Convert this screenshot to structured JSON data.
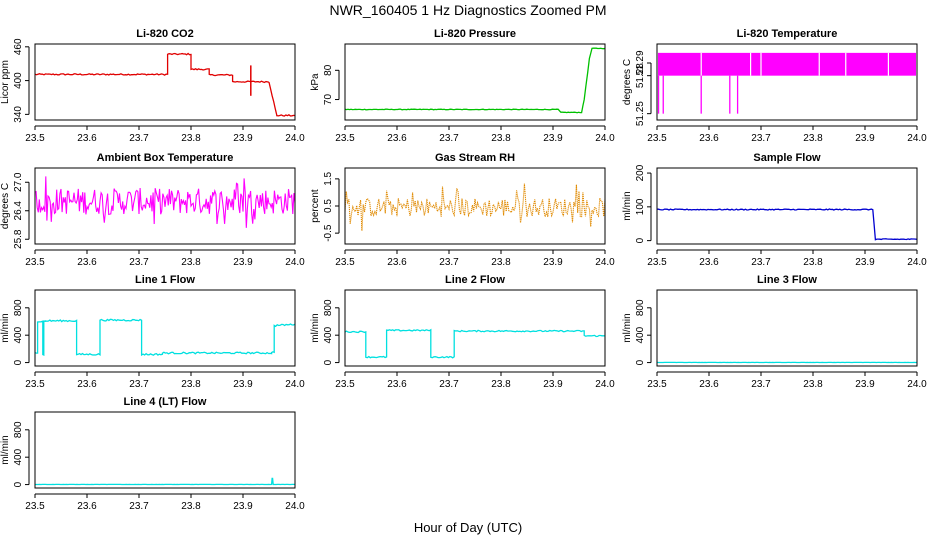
{
  "figure": {
    "title": "NWR_160405  1 Hz Diagnostics Zoomed PM",
    "xlabel": "Hour of Day (UTC)"
  },
  "chart_data": [
    {
      "type": "line",
      "title": "Li-820 CO2",
      "ylabel": "Licor ppm",
      "xlim": [
        23.5,
        24.0
      ],
      "ylim": [
        330,
        465
      ],
      "xticks": [
        "23.5",
        "23.6",
        "23.7",
        "23.8",
        "23.9",
        "24.0"
      ],
      "yticks": [
        {
          "v": 340,
          "label": "340"
        },
        {
          "v": 400,
          "label": "400"
        },
        {
          "v": 460,
          "label": "460"
        }
      ],
      "noise": 1.2,
      "series": [
        {
          "color": "#e00000",
          "x": [
            23.5,
            23.755,
            23.755,
            23.8,
            23.8,
            23.835,
            23.835,
            23.88,
            23.88,
            23.95,
            23.95,
            23.965,
            23.965,
            24.0
          ],
          "y": [
            411,
            411,
            447,
            447,
            420,
            420,
            410,
            410,
            398,
            398,
            398,
            338,
            338,
            338
          ]
        }
      ],
      "cross": {
        "x": 23.915,
        "y": 400,
        "dy": 27
      }
    },
    {
      "type": "line",
      "title": "Li-820 Pressure",
      "ylabel": "kPa",
      "xlim": [
        23.5,
        24.0
      ],
      "ylim": [
        63,
        89
      ],
      "xticks": [
        "23.5",
        "23.6",
        "23.7",
        "23.8",
        "23.9",
        "24.0"
      ],
      "yticks": [
        {
          "v": 70,
          "label": "70"
        },
        {
          "v": 80,
          "label": "80"
        }
      ],
      "noise": 0.1,
      "series": [
        {
          "color": "#00c000",
          "x": [
            23.5,
            23.91,
            23.915,
            23.955,
            23.96,
            23.97,
            23.975,
            24.0
          ],
          "y": [
            66.6,
            66.6,
            65.6,
            65.6,
            70,
            84,
            87.5,
            87.5
          ]
        }
      ]
    },
    {
      "type": "band",
      "title": "Li-820 Temperature",
      "ylabel": "degrees C",
      "xlim": [
        23.5,
        24.0
      ],
      "ylim": [
        51.245,
        51.305
      ],
      "xticks": [
        "23.5",
        "23.6",
        "23.7",
        "23.8",
        "23.9",
        "24.0"
      ],
      "yticks": [
        {
          "v": 51.25,
          "label": "51.25"
        },
        {
          "v": 51.28,
          "label": "51.28"
        },
        {
          "v": 51.29,
          "label": "51.29"
        }
      ],
      "color": "#ff00ff",
      "low": 51.28,
      "high": 51.298,
      "gaps": [
        23.585,
        23.68,
        23.7,
        23.812,
        23.863,
        23.945
      ],
      "spikes": [
        {
          "x": 23.503,
          "y": 51.25
        },
        {
          "x": 23.512,
          "y": 51.25
        },
        {
          "x": 23.585,
          "y": 51.25
        },
        {
          "x": 23.64,
          "y": 51.25
        },
        {
          "x": 23.655,
          "y": 51.25
        }
      ]
    },
    {
      "type": "noise",
      "title": "Ambient Box Temperature",
      "ylabel": "degrees C",
      "xlim": [
        23.5,
        24.0
      ],
      "ylim": [
        25.7,
        27.3
      ],
      "xticks": [
        "23.5",
        "23.6",
        "23.7",
        "23.8",
        "23.9",
        "24.0"
      ],
      "yticks": [
        {
          "v": 25.8,
          "label": "25.8"
        },
        {
          "v": 26.4,
          "label": "26.4"
        },
        {
          "v": 27.0,
          "label": "27.0"
        }
      ],
      "color": "#ff00ff",
      "mean": 26.6,
      "amp": 0.28,
      "spike": 0.6,
      "points": 240,
      "dotted": false
    },
    {
      "type": "noise",
      "title": "Gas Stream RH",
      "ylabel": "percent",
      "xlim": [
        23.5,
        24.0
      ],
      "ylim": [
        -0.9,
        1.9
      ],
      "xticks": [
        "23.5",
        "23.6",
        "23.7",
        "23.8",
        "23.9",
        "24.0"
      ],
      "yticks": [
        {
          "v": -0.5,
          "label": "-0.5"
        },
        {
          "v": 0.5,
          "label": "0.5"
        },
        {
          "v": 1.5,
          "label": "1.5"
        }
      ],
      "color": "#e08a00",
      "mean": 0.45,
      "amp": 0.35,
      "spike": 0.9,
      "points": 200,
      "dotted": true
    },
    {
      "type": "line",
      "title": "Sample Flow",
      "ylabel": "ml/min",
      "xlim": [
        23.5,
        24.0
      ],
      "ylim": [
        -10,
        215
      ],
      "xticks": [
        "23.5",
        "23.6",
        "23.7",
        "23.8",
        "23.9",
        "24.0"
      ],
      "yticks": [
        {
          "v": 0,
          "label": "0"
        },
        {
          "v": 100,
          "label": "100"
        },
        {
          "v": 200,
          "label": "200"
        }
      ],
      "noise": 1.5,
      "series": [
        {
          "color": "#0000d0",
          "x": [
            23.5,
            23.915,
            23.92,
            24.0
          ],
          "y": [
            92,
            92,
            4,
            4
          ]
        }
      ]
    },
    {
      "type": "line",
      "title": "Line 1 Flow",
      "ylabel": "ml/min",
      "xlim": [
        23.5,
        24.0
      ],
      "ylim": [
        -50,
        1060
      ],
      "xticks": [
        "23.5",
        "23.6",
        "23.7",
        "23.8",
        "23.9",
        "24.0"
      ],
      "yticks": [
        {
          "v": 0,
          "label": "0"
        },
        {
          "v": 400,
          "label": "400"
        },
        {
          "v": 800,
          "label": "800"
        }
      ],
      "noise": 12,
      "series": [
        {
          "color": "#00e0e0",
          "x": [
            23.5,
            23.505,
            23.505,
            23.515,
            23.515,
            23.517,
            23.517,
            23.52,
            23.52,
            23.58,
            23.58,
            23.625,
            23.625,
            23.705,
            23.705,
            23.745,
            23.745,
            23.955,
            23.955,
            23.96,
            23.96,
            24.0
          ],
          "y": [
            150,
            150,
            600,
            600,
            120,
            120,
            600,
            600,
            610,
            610,
            120,
            120,
            620,
            620,
            120,
            120,
            140,
            140,
            140,
            160,
            540,
            560
          ]
        }
      ]
    },
    {
      "type": "line",
      "title": "Line 2 Flow",
      "ylabel": "ml/min",
      "xlim": [
        23.5,
        24.0
      ],
      "ylim": [
        -50,
        1060
      ],
      "xticks": [
        "23.5",
        "23.6",
        "23.7",
        "23.8",
        "23.9",
        "24.0"
      ],
      "yticks": [
        {
          "v": 0,
          "label": "0"
        },
        {
          "v": 400,
          "label": "400"
        },
        {
          "v": 800,
          "label": "800"
        }
      ],
      "noise": 10,
      "series": [
        {
          "color": "#00e0e0",
          "x": [
            23.5,
            23.54,
            23.54,
            23.58,
            23.58,
            23.665,
            23.665,
            23.71,
            23.71,
            23.96,
            23.96,
            24.0
          ],
          "y": [
            450,
            450,
            80,
            80,
            470,
            470,
            80,
            80,
            460,
            460,
            390,
            390
          ]
        }
      ]
    },
    {
      "type": "line",
      "title": "Line 3 Flow",
      "ylabel": "ml/min",
      "xlim": [
        23.5,
        24.0
      ],
      "ylim": [
        -50,
        1060
      ],
      "xticks": [
        "23.5",
        "23.6",
        "23.7",
        "23.8",
        "23.9",
        "24.0"
      ],
      "yticks": [
        {
          "v": 0,
          "label": "0"
        },
        {
          "v": 400,
          "label": "400"
        },
        {
          "v": 800,
          "label": "800"
        }
      ],
      "noise": 1,
      "series": [
        {
          "color": "#00e0e0",
          "x": [
            23.5,
            24.0
          ],
          "y": [
            2,
            2
          ]
        }
      ]
    },
    {
      "type": "line",
      "title": "Line 4 (LT) Flow",
      "ylabel": "ml/min",
      "xlim": [
        23.5,
        24.0
      ],
      "ylim": [
        -50,
        1060
      ],
      "xticks": [
        "23.5",
        "23.6",
        "23.7",
        "23.8",
        "23.9",
        "24.0"
      ],
      "yticks": [
        {
          "v": 0,
          "label": "0"
        },
        {
          "v": 400,
          "label": "400"
        },
        {
          "v": 800,
          "label": "800"
        }
      ],
      "noise": 1,
      "series": [
        {
          "color": "#00e0e0",
          "x": [
            23.5,
            23.955,
            23.956,
            23.957,
            23.958,
            24.0
          ],
          "y": [
            2,
            2,
            90,
            90,
            2,
            2
          ]
        }
      ]
    }
  ]
}
